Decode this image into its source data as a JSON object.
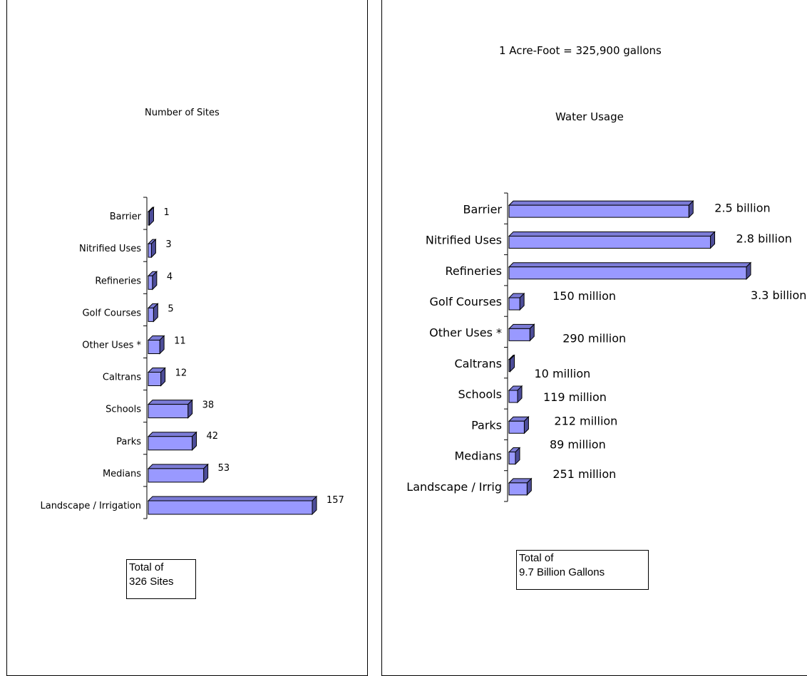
{
  "chart_data": [
    {
      "type": "bar",
      "title": "Number of Sites",
      "orientation": "horizontal",
      "categories": [
        "Barrier",
        "Nitrified Uses",
        "Refineries",
        "Golf Courses",
        "Other Uses *",
        "Caltrans",
        "Schools",
        "Parks",
        "Medians",
        "Landscape / Irrigation"
      ],
      "values": [
        1,
        3,
        4,
        5,
        11,
        12,
        38,
        42,
        53,
        157
      ],
      "data_labels": [
        "1",
        "3",
        "4",
        "5",
        "11",
        "12",
        "38",
        "42",
        "53",
        "157"
      ],
      "unit": "sites",
      "grid": false,
      "legend": "none",
      "bar_color": "#9999ff",
      "total_note": [
        "Total of",
        "326 Sites"
      ]
    },
    {
      "type": "bar",
      "title": "Water Usage",
      "subtitle": "1 Acre-Foot = 325,900 gallons",
      "orientation": "horizontal",
      "categories": [
        "Barrier",
        "Nitrified Uses",
        "Refineries",
        "Golf Courses",
        "Other Uses *",
        "Caltrans",
        "Schools",
        "Parks",
        "Medians",
        "Landscape / Irrig"
      ],
      "values": [
        2500000000,
        2800000000,
        3300000000,
        150000000,
        290000000,
        10000000,
        119000000,
        212000000,
        89000000,
        251000000
      ],
      "data_labels": [
        "2.5 billion",
        "2.8 billion",
        "3.3 billion",
        "150 million",
        "290 million",
        "10 million",
        "119 million",
        "212 million",
        "89 million",
        "251 million"
      ],
      "unit": "gallons",
      "grid": false,
      "legend": "none",
      "bar_color": "#9999ff",
      "total_note": [
        "Total of",
        "9.7 Billion Gallons"
      ]
    }
  ]
}
